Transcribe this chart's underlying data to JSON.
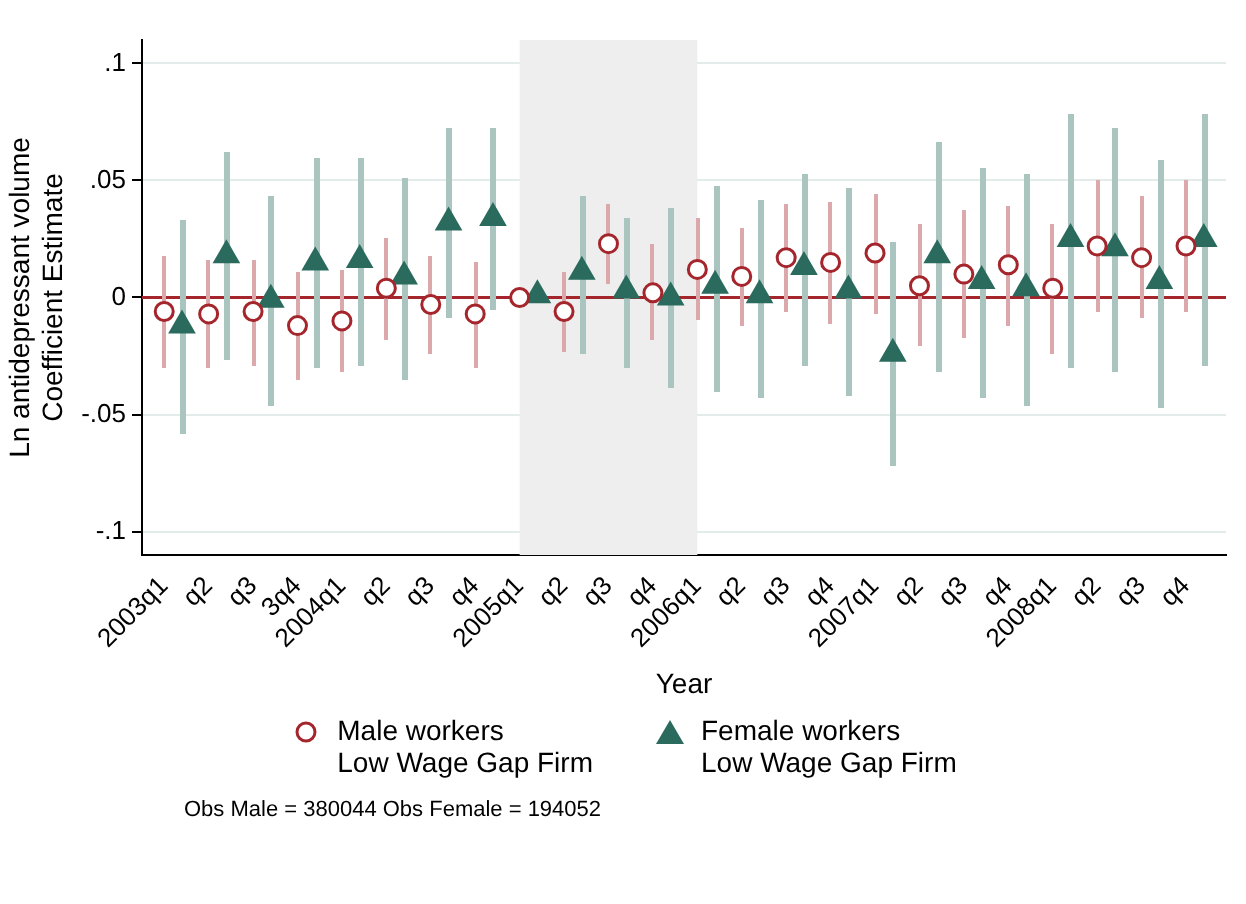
{
  "chart_data": {
    "type": "scatter",
    "xlabel": "Year",
    "ylabel": "Ln antidepressant volume\nCoefficient Estimate",
    "categories": [
      "2003q1",
      "q2",
      "q3",
      "3q4",
      "2004q1",
      "q2",
      "q3",
      "q4",
      "2005q1",
      "q2",
      "q3",
      "q4",
      "2006q1",
      "q2",
      "q3",
      "q4",
      "2007q1",
      "q2",
      "q3",
      "q4",
      "2008q1",
      "q2",
      "q3",
      "q4"
    ],
    "ylim": [
      -0.11,
      0.11
    ],
    "yticks": [
      {
        "value": -0.1,
        "label": "-.1"
      },
      {
        "value": -0.05,
        "label": "-.05"
      },
      0,
      {
        "value": 0.05,
        "label": ".05"
      },
      {
        "value": 0.1,
        "label": ".1"
      }
    ],
    "grid": "y",
    "legend": "bottom",
    "series": [
      {
        "name": "Male workers\nLow Wage Gap Firm",
        "color": "#a4262c",
        "marker": "circle",
        "values": [
          -0.006,
          -0.007,
          -0.006,
          -0.012,
          -0.01,
          0.004,
          -0.003,
          -0.007,
          0,
          -0.006,
          0.023,
          0.002,
          0.012,
          0.009,
          0.017,
          0.015,
          0.019,
          0.005,
          0.01,
          0.014,
          0.004,
          0.022,
          0.017,
          0.022
        ],
        "errors": [
          [
            -0.03,
            0.018
          ],
          [
            -0.03,
            0.016
          ],
          [
            -0.029,
            0.016
          ],
          [
            -0.035,
            0.011
          ],
          [
            -0.032,
            0.012
          ],
          [
            -0.018,
            0.025
          ],
          [
            -0.024,
            0.018
          ],
          [
            -0.03,
            0.015
          ],
          null,
          [
            -0.023,
            0.011
          ],
          [
            0.006,
            0.04
          ],
          [
            -0.018,
            0.023
          ],
          [
            -0.01,
            0.034
          ],
          [
            -0.012,
            0.03
          ],
          [
            -0.006,
            0.04
          ],
          [
            -0.011,
            0.041
          ],
          [
            -0.007,
            0.044
          ],
          [
            -0.021,
            0.031
          ],
          [
            -0.017,
            0.037
          ],
          [
            -0.012,
            0.039
          ],
          [
            -0.024,
            0.031
          ],
          [
            -0.006,
            0.05
          ],
          [
            -0.009,
            0.043
          ],
          [
            -0.006,
            0.05
          ]
        ]
      },
      {
        "name": "Female workers\nLow Wage Gap Firm",
        "color": "#2a6b5e",
        "marker": "triangle",
        "values": [
          -0.012,
          0.018,
          -0.001,
          0.015,
          0.016,
          0.009,
          0.032,
          0.034,
          0.001,
          0.011,
          0.003,
          0,
          0.005,
          0.001,
          0.013,
          0.003,
          -0.024,
          0.018,
          0.007,
          0.004,
          0.025,
          0.021,
          0.007,
          0.025
        ],
        "errors": [
          [
            -0.058,
            0.033
          ],
          [
            -0.027,
            0.062
          ],
          [
            -0.046,
            0.043
          ],
          [
            -0.03,
            0.06
          ],
          [
            -0.029,
            0.06
          ],
          [
            -0.035,
            0.051
          ],
          [
            -0.009,
            0.072
          ],
          [
            -0.005,
            0.072
          ],
          null,
          [
            -0.024,
            0.043
          ],
          [
            -0.03,
            0.034
          ],
          [
            -0.039,
            0.038
          ],
          [
            -0.04,
            0.048
          ],
          [
            -0.043,
            0.042
          ],
          [
            -0.029,
            0.053
          ],
          [
            -0.042,
            0.047
          ],
          [
            -0.072,
            0.024
          ],
          [
            -0.032,
            0.066
          ],
          [
            -0.043,
            0.055
          ],
          [
            -0.046,
            0.053
          ],
          [
            -0.03,
            0.078
          ],
          [
            -0.032,
            0.072
          ],
          [
            -0.047,
            0.059
          ],
          [
            -0.029,
            0.078
          ]
        ]
      }
    ],
    "ref_lines": [
      {
        "axis": "y",
        "value": 0,
        "color": "#a4262c"
      }
    ],
    "bands": [
      {
        "axis": "x",
        "from": "2005q1",
        "to": "2006q1",
        "color": "#eeeeee"
      }
    ],
    "annotations": [
      "Obs Male = 380044 Obs Female = 194052"
    ]
  }
}
